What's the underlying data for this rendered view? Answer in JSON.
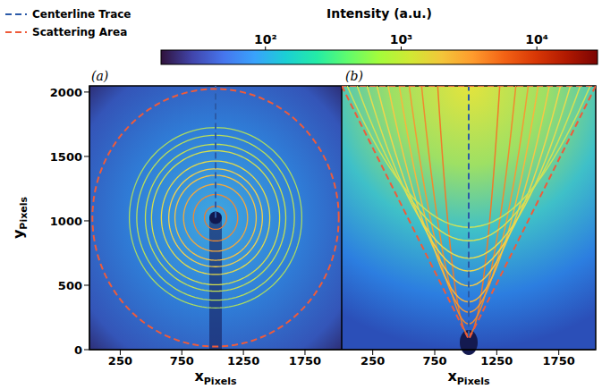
{
  "colorbar": {
    "title": "Intensity (a.u.)",
    "log": true,
    "range": [
      17,
      28000
    ],
    "ticks": [
      {
        "value": 100,
        "label": "10²"
      },
      {
        "value": 1000,
        "label": "10³"
      },
      {
        "value": 10000,
        "label": "10⁴"
      }
    ]
  },
  "chart_data": [
    {
      "type": "line",
      "panel_label": "(a)",
      "xlabel": "xPixels",
      "ylabel": "yPixels",
      "xlim": [
        0,
        2048
      ],
      "ylim": [
        0,
        2048
      ],
      "xticks": [
        250,
        750,
        1250,
        1750
      ],
      "yticks": [
        0,
        500,
        1000,
        1500,
        2000
      ],
      "legend": "upper left",
      "series": [
        {
          "name": "Centerline Trace",
          "color": "#2b5aa8",
          "line_style": "dashed",
          "x": [
            1024,
            1024
          ],
          "values": [
            1024,
            2048
          ]
        },
        {
          "name": "Scattering Area",
          "color": "#ef5b3a",
          "line_style": "dashed",
          "shape": "circle",
          "center": [
            1024,
            1024
          ],
          "radius": 1000
        }
      ],
      "rings": {
        "center": [
          1024,
          1024
        ],
        "radii": [
          90,
          180,
          260,
          330,
          380,
          440,
          520,
          570,
          640,
          700
        ],
        "colors": [
          "#f07a2a",
          "#f28a30",
          "#f5a93a",
          "#f6c244",
          "#f4d04a",
          "#e6da48",
          "#d4df4c",
          "#c4e052",
          "#b8de5a",
          "#a9da62"
        ]
      }
    },
    {
      "type": "line",
      "panel_label": "(b)",
      "xlabel": "xPixels",
      "xlim": [
        0,
        2048
      ],
      "ylim": [
        0,
        2048
      ],
      "xticks": [
        250,
        750,
        1250,
        1750
      ],
      "tick_labels": "x",
      "series": [
        {
          "name": "Centerline Trace",
          "color": "#2b5aa8",
          "line_style": "dashed",
          "x": [
            1024,
            1024
          ],
          "values": [
            100,
            2048
          ]
        },
        {
          "name": "Scattering Area",
          "color": "#ef5b3a",
          "line_style": "dashed",
          "x": [
            0,
            1024,
            2048,
            0
          ],
          "values": [
            2048,
            80,
            2048,
            2048
          ]
        }
      ],
      "arcs": {
        "x": 1024,
        "apex": [
          115,
          200,
          290,
          370,
          495,
          610,
          710,
          845,
          950
        ],
        "half_width": [
          250,
          380,
          480,
          560,
          650,
          740,
          820,
          900,
          980
        ],
        "colors": [
          "#f07a2a",
          "#f08a2e",
          "#f49a34",
          "#f6b63e",
          "#f5c846",
          "#f0d64c",
          "#e4dc50",
          "#d6e054",
          "#cce25a"
        ]
      }
    }
  ]
}
